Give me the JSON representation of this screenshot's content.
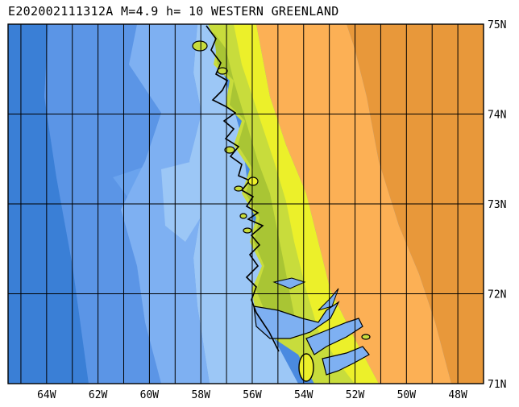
{
  "header": {
    "title": "E202002111312A M=4.9 h= 10 WESTERN GREENLAND"
  },
  "map": {
    "lon_ticks": [
      "64W",
      "62W",
      "60W",
      "58W",
      "56W",
      "54W",
      "52W",
      "50W",
      "48W"
    ],
    "lat_ticks": [
      "75N",
      "74N",
      "73N",
      "72N",
      "71N"
    ],
    "lon_range": [
      -65.5,
      -47.0
    ],
    "lat_range": [
      71,
      75
    ],
    "colors": {
      "deep_ocean": "#3a7fd6",
      "mid_ocean": "#5b95e6",
      "shallow_ocean": "#7eb0f2",
      "shelf": "#9cc7f6",
      "coast_green": "#c8dc3c",
      "low_land": "#ecf02a",
      "mid_land": "#fcb055",
      "high_land": "#e8983a",
      "grid": "#000000"
    }
  }
}
